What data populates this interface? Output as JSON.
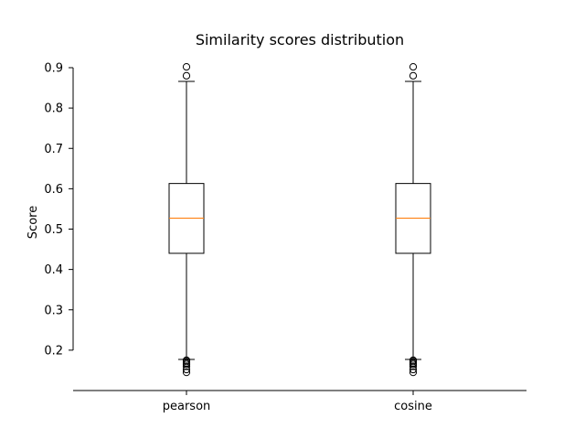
{
  "chart_data": {
    "type": "box",
    "title": "Similarity scores distribution",
    "xlabel": "",
    "ylabel": "Score",
    "ylim": [
      0.1,
      0.9
    ],
    "yticks": [
      0.2,
      0.3,
      0.4,
      0.5,
      0.6,
      0.7,
      0.8,
      0.9
    ],
    "ytick_labels": [
      "0.2",
      "0.3",
      "0.4",
      "0.5",
      "0.6",
      "0.7",
      "0.8",
      "0.9"
    ],
    "categories": [
      "pearson",
      "cosine"
    ],
    "series": [
      {
        "category": "pearson",
        "whisker_low": 0.177,
        "q1": 0.44,
        "median": 0.527,
        "q3": 0.613,
        "whisker_high": 0.866,
        "outliers": [
          0.902,
          0.88,
          0.175,
          0.172,
          0.168,
          0.165,
          0.16,
          0.152,
          0.145
        ]
      },
      {
        "category": "cosine",
        "whisker_low": 0.177,
        "q1": 0.44,
        "median": 0.527,
        "q3": 0.613,
        "whisker_high": 0.866,
        "outliers": [
          0.902,
          0.88,
          0.175,
          0.172,
          0.168,
          0.165,
          0.16,
          0.152,
          0.145
        ]
      }
    ],
    "grid": false,
    "legend": "none",
    "colors": {
      "box": "#000000",
      "median": "#ff7f0e",
      "outlier": "#000000"
    }
  }
}
